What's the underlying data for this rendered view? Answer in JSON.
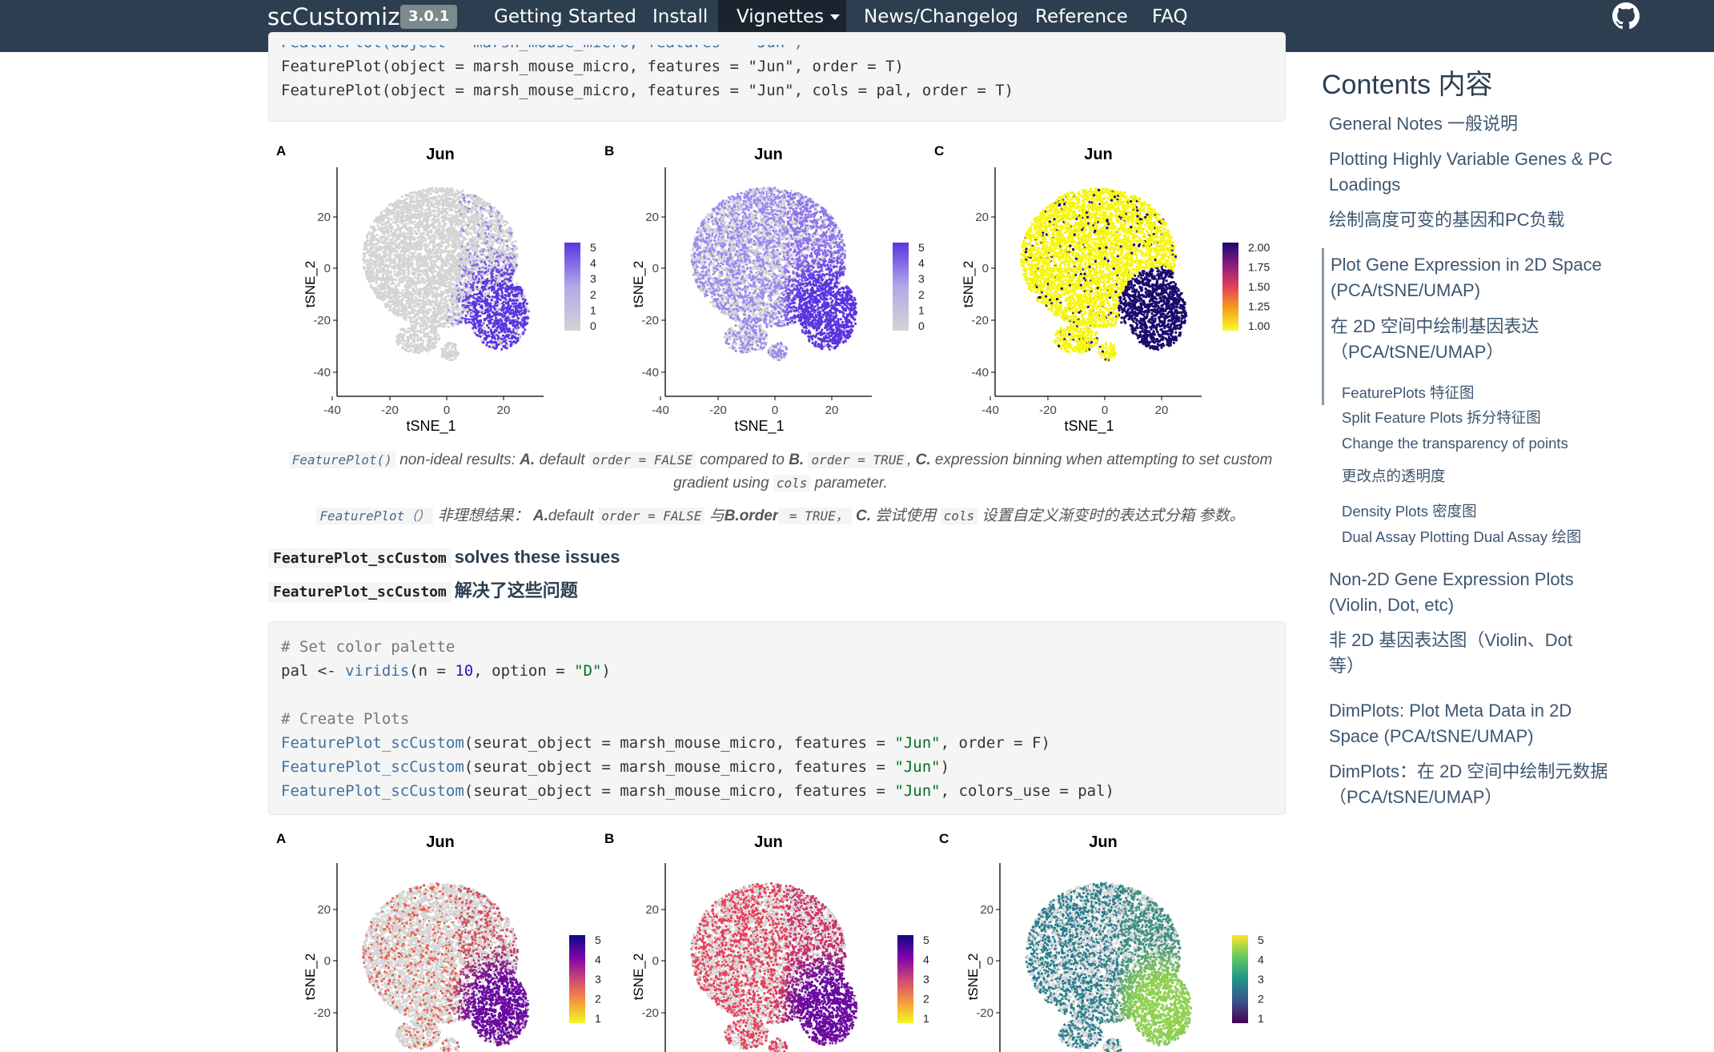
{
  "navbar": {
    "brand": "scCustomize",
    "version": "3.0.1",
    "items": [
      "Getting Started",
      "Install",
      "Vignettes",
      "News/Changelog",
      "Reference",
      "FAQ"
    ],
    "github_icon": "github-icon"
  },
  "code1": {
    "lines": [
      "FeaturePlot(object = marsh_mouse_micro, features = \"Jun\")",
      "FeaturePlot(object = marsh_mouse_micro, features = \"Jun\", order = T)",
      "FeaturePlot(object = marsh_mouse_micro, features = \"Jun\", cols = pal, order = T)"
    ]
  },
  "plots_row1": {
    "panels": [
      {
        "letter": "A",
        "title": "Jun",
        "legend": [
          "5",
          "4",
          "3",
          "2",
          "1",
          "0"
        ]
      },
      {
        "letter": "B",
        "title": "Jun",
        "legend": [
          "5",
          "4",
          "3",
          "2",
          "1",
          "0"
        ]
      },
      {
        "letter": "C",
        "title": "Jun",
        "legend": [
          "2.00",
          "1.75",
          "1.50",
          "1.25",
          "1.00"
        ]
      }
    ],
    "xlabel": "tSNE_1",
    "ylabel": "tSNE_2",
    "xticks": [
      "-40",
      "-20",
      "0",
      "20"
    ],
    "yticks": [
      "20",
      "0",
      "-20",
      "-40"
    ]
  },
  "caption1": {
    "code": "FeaturePlot()",
    "t1": " non-ideal results: ",
    "a": "A.",
    "t2": " default ",
    "c_order_false": "order = FALSE",
    "t3": " compared to ",
    "b": "B.",
    "c_order_true": "order = TRUE",
    "t4": ", ",
    "c": "C.",
    "t5": " expression binning when attempting to set custom gradient using ",
    "c_cols": "cols",
    "t6": " parameter."
  },
  "caption2": {
    "code": "FeaturePlot（）",
    "t1": " 非理想结果： ",
    "a": "A.",
    "t2": "default ",
    "c_order_false": "order = FALSE",
    "t3": " 与",
    "b": "B.order",
    "c_true": " = TRUE，",
    "t4": " ",
    "c": "C.",
    "t5": " 尝试使用 ",
    "c_cols": "cols",
    "t6": " 设置自定义渐变时的表达式分箱 参数。"
  },
  "solves": {
    "code": "FeaturePlot_scCustom",
    "en": "solves these issues",
    "zh": "解决了这些问题"
  },
  "code2": {
    "comment1": "# Set color palette",
    "pal_line": {
      "a": "pal <- ",
      "fn": "viridis",
      "b": "(n = ",
      "num": "10",
      "c": ", option = ",
      "str": "\"D\"",
      "d": ")"
    },
    "comment2": "# Create Plots",
    "calls": [
      {
        "fn": "FeaturePlot_scCustom",
        "a": "(seurat_object = marsh_mouse_micro, features = ",
        "str": "\"Jun\"",
        "b": ", order = F)"
      },
      {
        "fn": "FeaturePlot_scCustom",
        "a": "(seurat_object = marsh_mouse_micro, features = ",
        "str": "\"Jun\"",
        "b": ")"
      },
      {
        "fn": "FeaturePlot_scCustom",
        "a": "(seurat_object = marsh_mouse_micro, features = ",
        "str": "\"Jun\"",
        "b": ", colors_use = pal)"
      }
    ]
  },
  "plots_row2": {
    "panels": [
      {
        "letter": "A",
        "title": "Jun",
        "legend": [
          "5",
          "4",
          "3",
          "2",
          "1"
        ]
      },
      {
        "letter": "B",
        "title": "Jun",
        "legend": [
          "5",
          "4",
          "3",
          "2",
          "1"
        ]
      },
      {
        "letter": "C",
        "title": "Jun",
        "legend": [
          "5",
          "4",
          "3",
          "2",
          "1"
        ]
      }
    ],
    "ylabel": "tSNE_2",
    "yticks": [
      "20",
      "0",
      "-20"
    ]
  },
  "toc": {
    "title": "Contents 内容",
    "items": [
      "General Notes 一般说明",
      "Plotting Highly Variable Genes & PC Loadings",
      "绘制高度可变的基因和PC负载",
      "Plot Gene Expression in 2D Space (PCA/tSNE/UMAP)",
      "在 2D 空间中绘制基因表达 （PCA/tSNE/UMAP）",
      "FeaturePlots 特征图",
      "Split Feature Plots 拆分特征图",
      "Change the transparency of points",
      "更改点的透明度",
      "Density Plots 密度图",
      "Dual Assay Plotting Dual Assay 绘图",
      "Non-2D Gene Expression Plots (Violin, Dot, etc)",
      "非 2D 基因表达图（Violin、Dot 等）",
      "DimPlots: Plot Meta Data in 2D Space (PCA/tSNE/UMAP)",
      "DimPlots：在 2D 空间中绘制元数据 （PCA/tSNE/UMAP）"
    ]
  }
}
